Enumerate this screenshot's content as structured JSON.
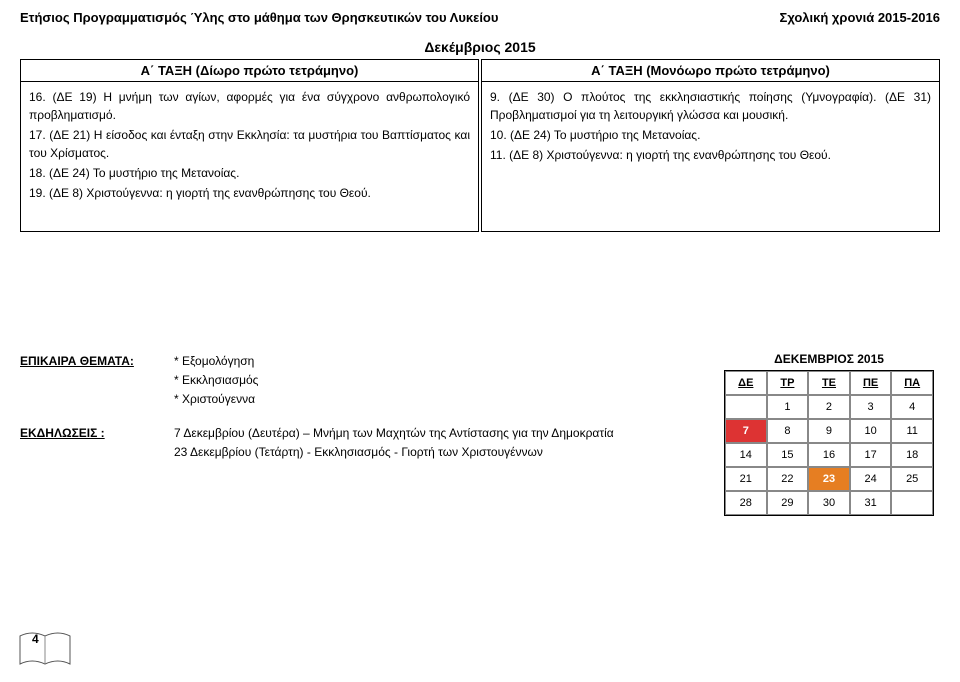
{
  "header": {
    "left": "Ετήσιος Προγραμματισμός Ύλης στο μάθημα των Θρησκευτικών του Λυκείου",
    "right": "Σχολική χρονιά 2015-2016"
  },
  "monthTitle": "Δεκέμβριος 2015",
  "cols": {
    "left": {
      "title": "Α΄ ΤΑΞΗ (Δίωρο πρώτο τετράμηνο)",
      "items": [
        "16. (ΔΕ 19) Η μνήμη των αγίων, αφορμές για ένα σύγχρονο ανθρωπολογικό προβληματισμό.",
        "17. (ΔΕ 21) Η είσοδος και ένταξη στην Εκκλησία: τα μυστήρια του Βαπτίσματος και του Χρίσματος.",
        "18. (ΔΕ 24) Το μυστήριο της Μετανοίας.",
        "19. (ΔΕ 8) Χριστούγεννα: η γιορτή της ενανθρώπησης του Θεού."
      ]
    },
    "right": {
      "title": "Α΄ ΤΑΞΗ (Μονόωρο πρώτο τετράμηνο)",
      "items": [
        "9. (ΔΕ 30) Ο πλούτος της εκκλησιαστικής ποίησης (Υμνογραφία). (ΔΕ 31) Προβληματισμοί για τη λειτουργική γλώσσα και μουσική.",
        "10. (ΔΕ 24) Το μυστήριο της Μετανοίας.",
        "11. (ΔΕ 8) Χριστούγεννα: η γιορτή της ενανθρώπησης του Θεού."
      ]
    }
  },
  "topics": {
    "label": "ΕΠΙΚΑΙΡΑ ΘΕΜΑΤΑ:",
    "items": [
      "* Εξομολόγηση",
      "* Εκκλησιασμός",
      "* Χριστούγεννα"
    ]
  },
  "events": {
    "label": "ΕΚΔΗΛΩΣΕΙΣ :",
    "items": [
      "7 Δεκεμβρίου (Δευτέρα) – Μνήμη των Μαχητών της Αντίστασης για την Δημοκρατία",
      "23 Δεκεμβρίου (Τετάρτη) - Εκκλησιασμός - Γιορτή των Χριστουγέννων"
    ]
  },
  "calendar": {
    "title": "ΔΕΚΕΜΒΡΙΟΣ 2015",
    "weekdays": [
      "ΔΕ",
      "ΤΡ",
      "ΤΕ",
      "ΠΕ",
      "ΠΑ"
    ],
    "rows": [
      [
        "",
        "1",
        "2",
        "3",
        "4"
      ],
      [
        "7",
        "8",
        "9",
        "10",
        "11"
      ],
      [
        "14",
        "15",
        "16",
        "17",
        "18"
      ],
      [
        "21",
        "22",
        "23",
        "24",
        "25"
      ],
      [
        "28",
        "29",
        "30",
        "31",
        ""
      ]
    ],
    "redCells": [
      "7"
    ],
    "orangeCells": [
      "23"
    ]
  },
  "pageNumber": "4"
}
